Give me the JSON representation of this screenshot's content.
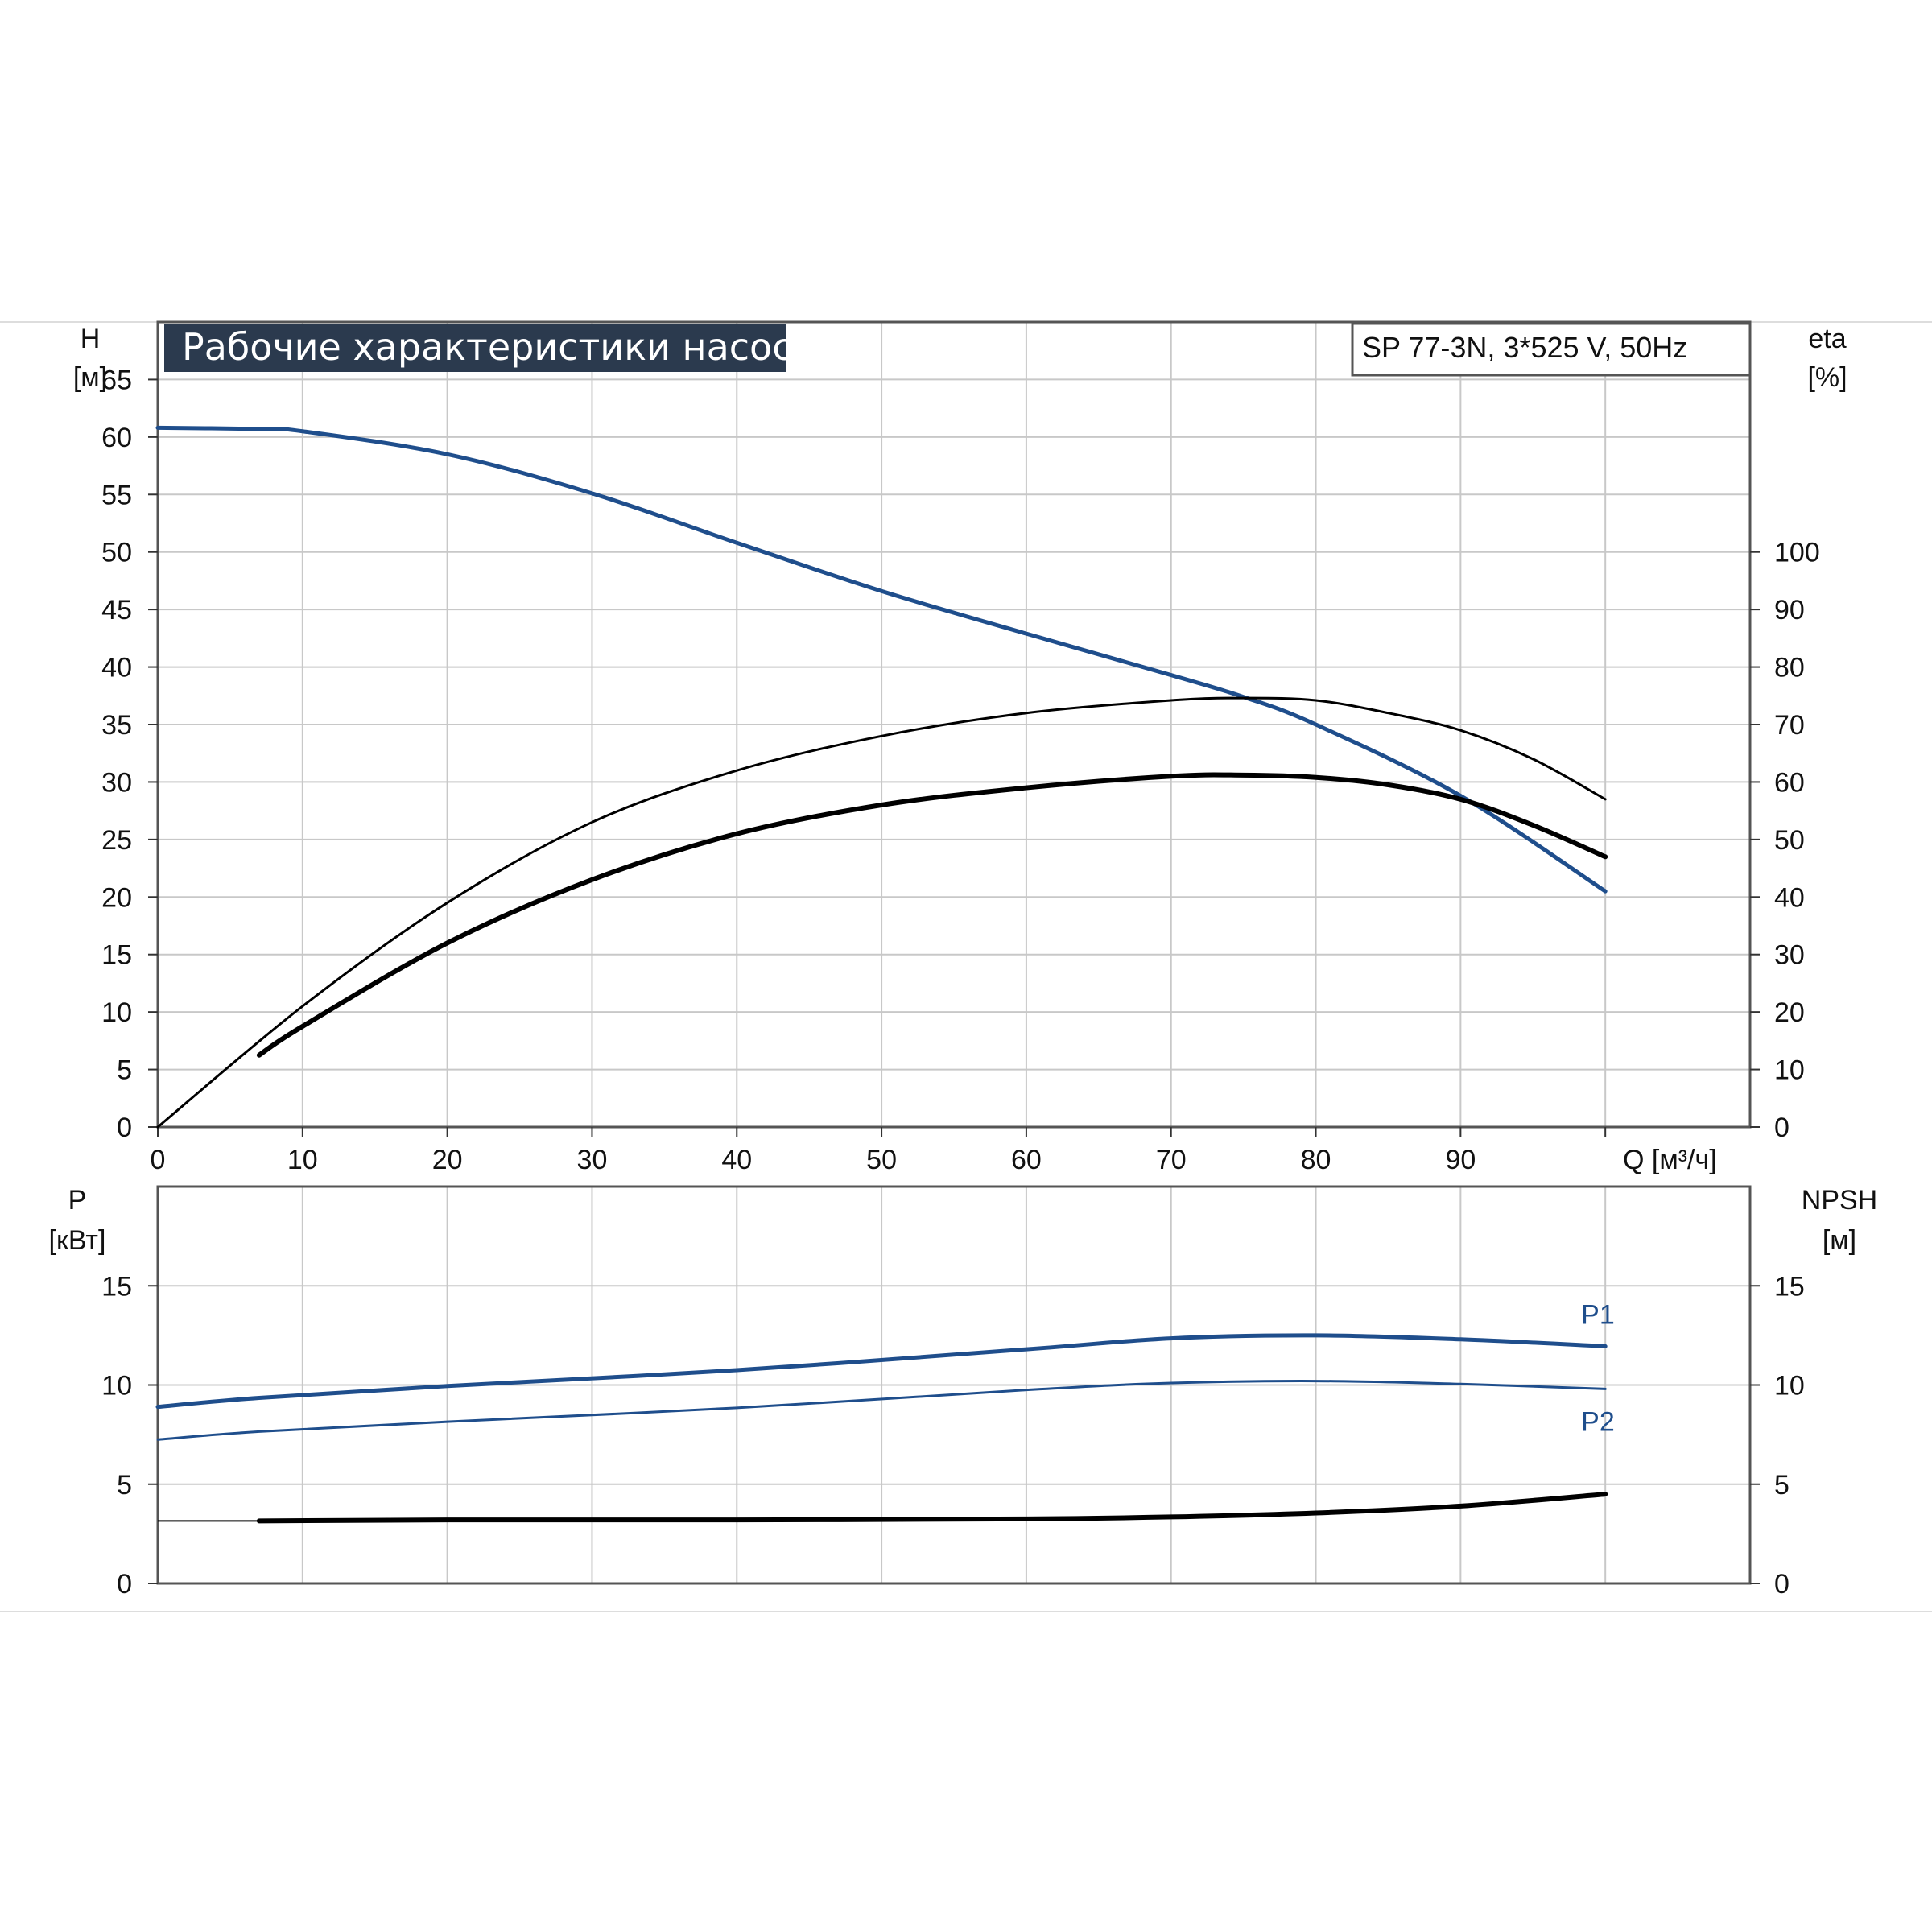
{
  "title": "Рабочие характеристики насоса",
  "model": "SP 77-3N, 3*525 V, 50Hz",
  "colors": {
    "blue": "#1f4e8c",
    "black": "#000000",
    "grid": "#c8c8c8",
    "title_bg": "#2b3a4e"
  },
  "top_chart": {
    "left_axis": {
      "label": "H",
      "unit": "[м]",
      "ticks": [
        0,
        5,
        10,
        15,
        20,
        25,
        30,
        35,
        40,
        45,
        50,
        55,
        60,
        65
      ],
      "range": [
        0,
        70
      ]
    },
    "right_axis": {
      "label": "eta",
      "unit": "[%]",
      "ticks": [
        0,
        10,
        20,
        30,
        40,
        50,
        60,
        70,
        80,
        90,
        100
      ],
      "range": [
        0,
        140
      ]
    },
    "x_axis": {
      "label": "Q [м³/ч]",
      "ticks": [
        0,
        10,
        20,
        30,
        40,
        50,
        60,
        70,
        80,
        90
      ],
      "range": [
        0,
        110
      ]
    }
  },
  "bottom_chart": {
    "left_axis": {
      "label": "P",
      "unit": "[кВт]",
      "ticks": [
        0,
        5,
        10,
        15
      ],
      "range": [
        0,
        20
      ]
    },
    "right_axis": {
      "label": "NPSH",
      "unit": "[м]",
      "ticks": [
        0,
        5,
        10,
        15
      ],
      "range": [
        0,
        20
      ]
    }
  },
  "chart_data": {
    "type": "line",
    "x_label": "Q [м³/ч]",
    "series": [
      {
        "axis": "H",
        "color": "#1f4e8c",
        "width": 5,
        "x": [
          0,
          7,
          10,
          20,
          30,
          40,
          50,
          60,
          70,
          75,
          80,
          90,
          100
        ],
        "y": [
          60.8,
          60.7,
          60.5,
          58.5,
          55.1,
          50.8,
          46.6,
          42.9,
          39.3,
          37.4,
          35.0,
          28.8,
          20.5
        ]
      },
      {
        "axis": "eta",
        "color": "#000000",
        "width": 3,
        "x": [
          0,
          10,
          20,
          30,
          40,
          50,
          60,
          70,
          75,
          80,
          85,
          90,
          95,
          100
        ],
        "y": [
          0,
          21,
          39,
          53,
          62,
          68,
          72,
          74.2,
          74.6,
          74.2,
          72,
          69,
          64,
          57
        ]
      },
      {
        "axis": "eta",
        "color": "#000000",
        "width": 6,
        "x": [
          7,
          10,
          20,
          30,
          40,
          50,
          60,
          70,
          75,
          80,
          85,
          90,
          95,
          100
        ],
        "y": [
          12.5,
          17.5,
          32,
          43,
          51,
          56,
          59,
          61,
          61.2,
          60.8,
          59.5,
          57,
          52.5,
          47
        ]
      },
      {
        "axis": "P",
        "name": "P1",
        "color": "#1f4e8c",
        "width": 5,
        "x": [
          0,
          7,
          20,
          40,
          60,
          70,
          80,
          90,
          100
        ],
        "y": [
          8.9,
          9.35,
          9.95,
          10.75,
          11.8,
          12.35,
          12.5,
          12.3,
          11.95
        ]
      },
      {
        "axis": "P",
        "name": "P2",
        "color": "#1f4e8c",
        "width": 3,
        "x": [
          0,
          7,
          20,
          40,
          60,
          70,
          80,
          90,
          100
        ],
        "y": [
          7.25,
          7.65,
          8.15,
          8.85,
          9.75,
          10.1,
          10.2,
          10.05,
          9.8
        ]
      },
      {
        "axis": "NPSH",
        "color": "#000000",
        "width": 6,
        "x": [
          7,
          20,
          40,
          60,
          70,
          80,
          90,
          100
        ],
        "y": [
          3.15,
          3.2,
          3.2,
          3.25,
          3.35,
          3.55,
          3.9,
          4.5
        ]
      }
    ]
  }
}
